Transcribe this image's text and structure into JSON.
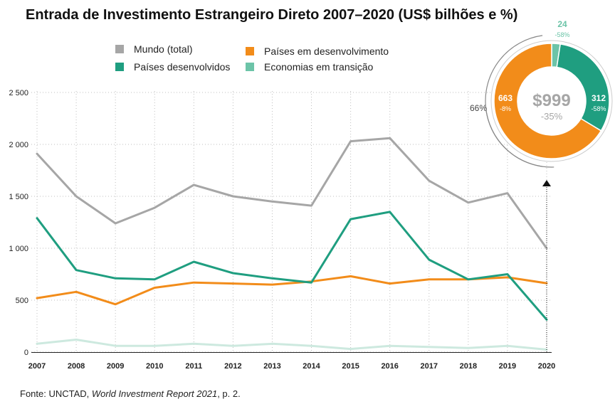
{
  "title": "Entrada de Investimento Estrangeiro Direto 2007–2020 (US$ bilhões e %)",
  "legend": {
    "world": "Mundo  (total)",
    "developing": "Países em desenvolvimento",
    "developed": "Países desenvolvidos",
    "transition": "Economias em transição"
  },
  "source": {
    "prefix": "Fonte: UNCTAD, ",
    "publication": "World Investment Report 2021",
    "suffix": ", p. 2."
  },
  "colors": {
    "world": "#a6a6a6",
    "developing": "#f28c1a",
    "developed": "#1f9e80",
    "transition": "#cde9df",
    "transition_donut": "#6cc4a8"
  },
  "chart_data": [
    {
      "type": "line",
      "title": "Entrada de Investimento Estrangeiro Direto 2007–2020 (US$ bilhões e %)",
      "x": [
        "2007",
        "2008",
        "2009",
        "2010",
        "2011",
        "2012",
        "2013",
        "2014",
        "2015",
        "2016",
        "2017",
        "2018",
        "2019",
        "2020"
      ],
      "ylim": [
        0,
        2500
      ],
      "yticks": [
        "0",
        "500",
        "1 000",
        "1 500",
        "2 000",
        "2 500"
      ],
      "ytick_values": [
        0,
        500,
        1000,
        1500,
        2000,
        2500
      ],
      "grid": true,
      "legend_position": "top-left",
      "series": [
        {
          "name": "Mundo  (total)",
          "key": "world",
          "values": [
            1910,
            1500,
            1240,
            1390,
            1610,
            1500,
            1450,
            1410,
            2030,
            2060,
            1650,
            1440,
            1530,
            999
          ]
        },
        {
          "name": "Países desenvolvidos",
          "key": "developed",
          "values": [
            1290,
            790,
            710,
            700,
            870,
            760,
            710,
            670,
            1280,
            1350,
            890,
            700,
            750,
            312
          ]
        },
        {
          "name": "Países em desenvolvimento",
          "key": "developing",
          "values": [
            520,
            580,
            460,
            620,
            670,
            660,
            650,
            680,
            730,
            660,
            700,
            700,
            720,
            663
          ]
        },
        {
          "name": "Economias em transição",
          "key": "transition",
          "values": [
            80,
            120,
            60,
            60,
            80,
            60,
            80,
            60,
            30,
            60,
            50,
            40,
            60,
            24
          ]
        }
      ]
    },
    {
      "type": "pie",
      "year": "2020",
      "center_label": "$999",
      "center_change": "-35%",
      "side_percent": "66%",
      "slices": [
        {
          "key": "transition",
          "value": 24,
          "label": "24",
          "change": "-58%"
        },
        {
          "key": "developed",
          "value": 312,
          "label": "312",
          "change": "-58%"
        },
        {
          "key": "developing",
          "value": 663,
          "label": "663",
          "change": "-8%"
        }
      ]
    }
  ]
}
